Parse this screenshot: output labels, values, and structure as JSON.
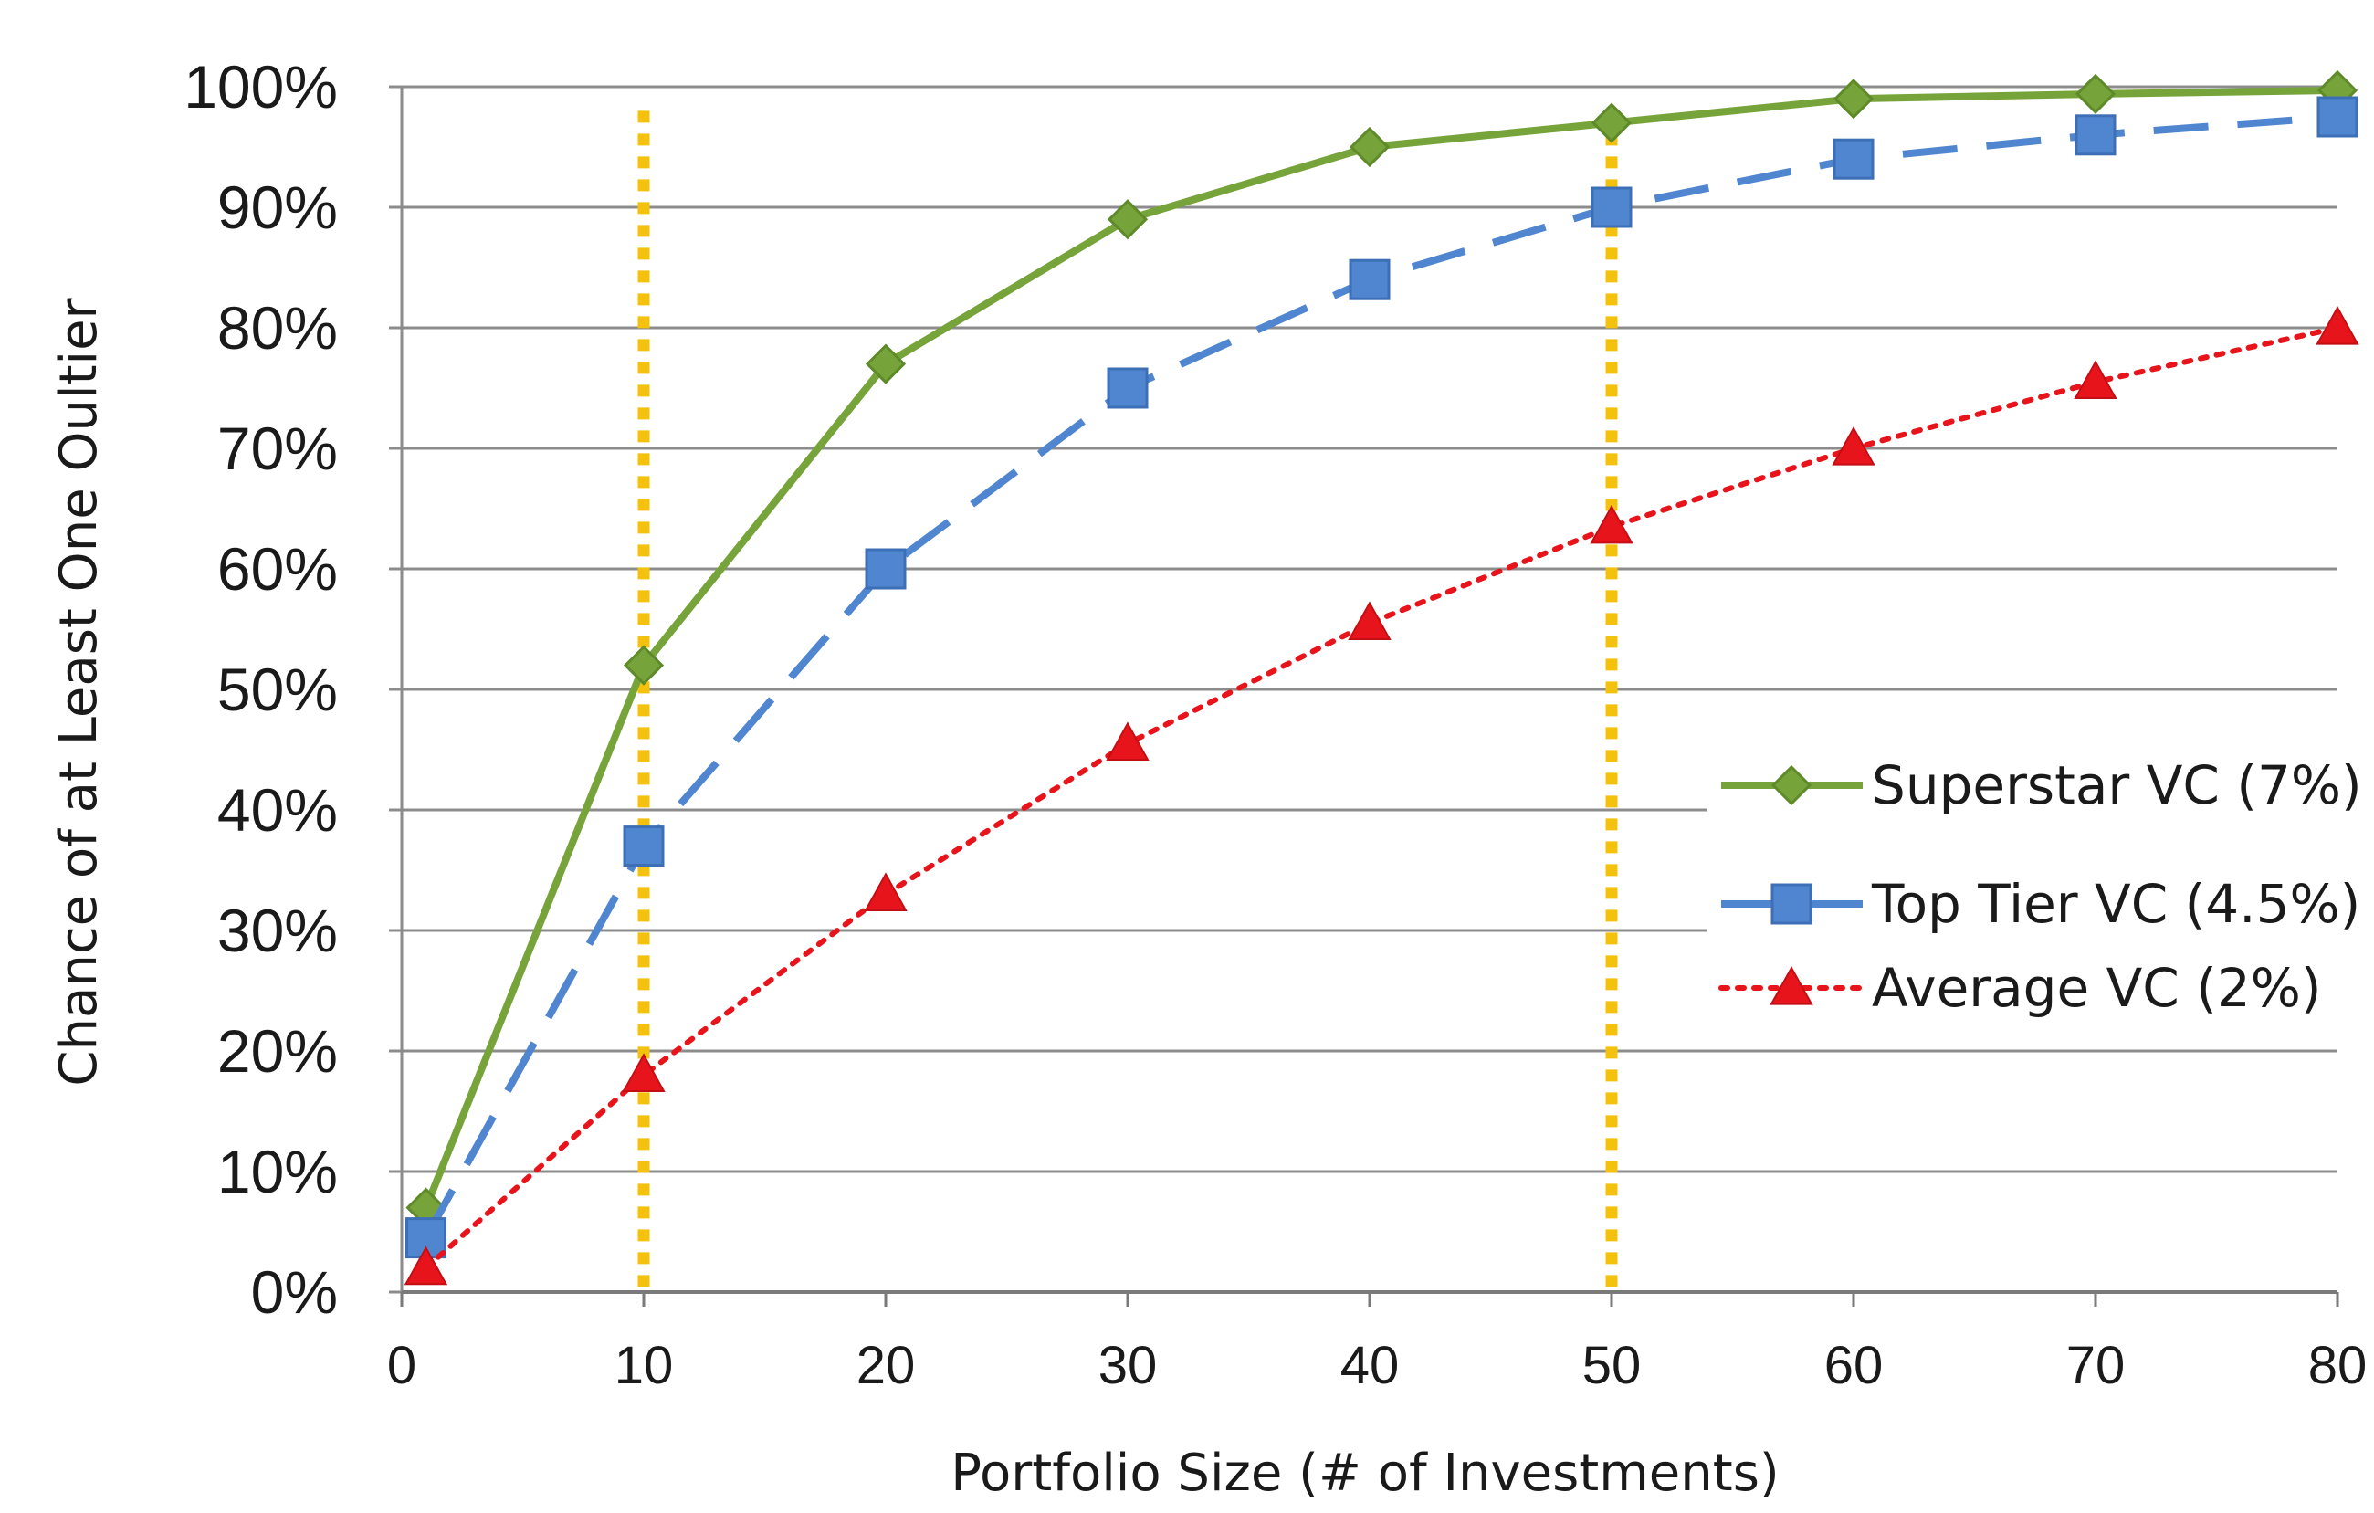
{
  "chart_data": {
    "type": "line",
    "title": "",
    "xlabel": "Portfolio Size (# of Investments)",
    "ylabel": "Chance of at Least One Oultier",
    "xlim": [
      0,
      80
    ],
    "ylim": [
      0,
      100
    ],
    "x_ticks": [
      0,
      10,
      20,
      30,
      40,
      50,
      60,
      70,
      80
    ],
    "x_tick_labels": [
      "0",
      "10",
      "20",
      "30",
      "40",
      "50",
      "60",
      "70",
      "80"
    ],
    "y_ticks": [
      0,
      10,
      20,
      30,
      40,
      50,
      60,
      70,
      80,
      90,
      100
    ],
    "y_tick_labels": [
      "0%",
      "10%",
      "20%",
      "30%",
      "40%",
      "50%",
      "60%",
      "70%",
      "80%",
      "90%",
      "100%"
    ],
    "grid": "horizontal",
    "legend_position": "right",
    "x": [
      1,
      10,
      20,
      30,
      40,
      50,
      60,
      70,
      80
    ],
    "series": [
      {
        "name": "Superstar VC (7%)",
        "color": "#77a43a",
        "marker": "diamond",
        "line_style": "solid",
        "values": [
          7,
          52,
          77,
          89,
          95,
          97,
          99,
          99.4,
          99.7
        ]
      },
      {
        "name": "Top Tier VC (4.5%)",
        "color": "#5086cf",
        "marker": "square",
        "line_style": "dashed",
        "values": [
          4.5,
          37,
          60,
          75,
          84,
          90,
          94,
          96,
          97.5
        ]
      },
      {
        "name": "Average VC (2%)",
        "color": "#e8141b",
        "marker": "triangle",
        "line_style": "dotted",
        "values": [
          2,
          18,
          33,
          45.5,
          55.5,
          63.5,
          70,
          75.5,
          80
        ]
      }
    ],
    "reference_lines": {
      "color": "#f4c20d",
      "style": "dotted",
      "x_values": [
        10,
        50
      ]
    }
  }
}
